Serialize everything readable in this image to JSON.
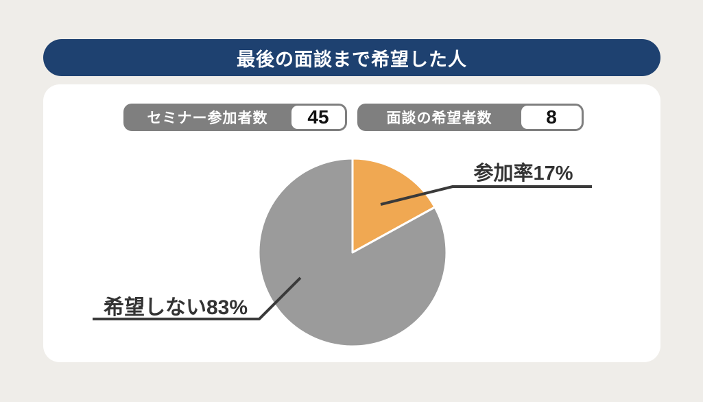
{
  "page": {
    "background_color": "#EFEDE9",
    "accent_navy": "#1E4170",
    "card_color": "#FFFFFF",
    "pill_gray": "#7F7F7F",
    "leader_line_color": "#3A3A3A"
  },
  "header": {
    "title": "最後の面談まで希望した人"
  },
  "stats": [
    {
      "label": "セミナー参加者数",
      "value": "45"
    },
    {
      "label": "面談の希望者数",
      "value": "8"
    }
  ],
  "chart_data": {
    "type": "pie",
    "title": "最後の面談まで希望した人",
    "slices": [
      {
        "name": "参加率",
        "label": "参加率17%",
        "value": 17,
        "color": "#F0A852"
      },
      {
        "name": "希望しない",
        "label": "希望しない83%",
        "value": 83,
        "color": "#9B9B9B"
      }
    ],
    "start_angle_deg": -90,
    "direction": "clockwise",
    "slice_gap_color": "#FFFFFF",
    "legend_position": "none",
    "annotations": [
      "参加率17%",
      "希望しない83%"
    ]
  }
}
